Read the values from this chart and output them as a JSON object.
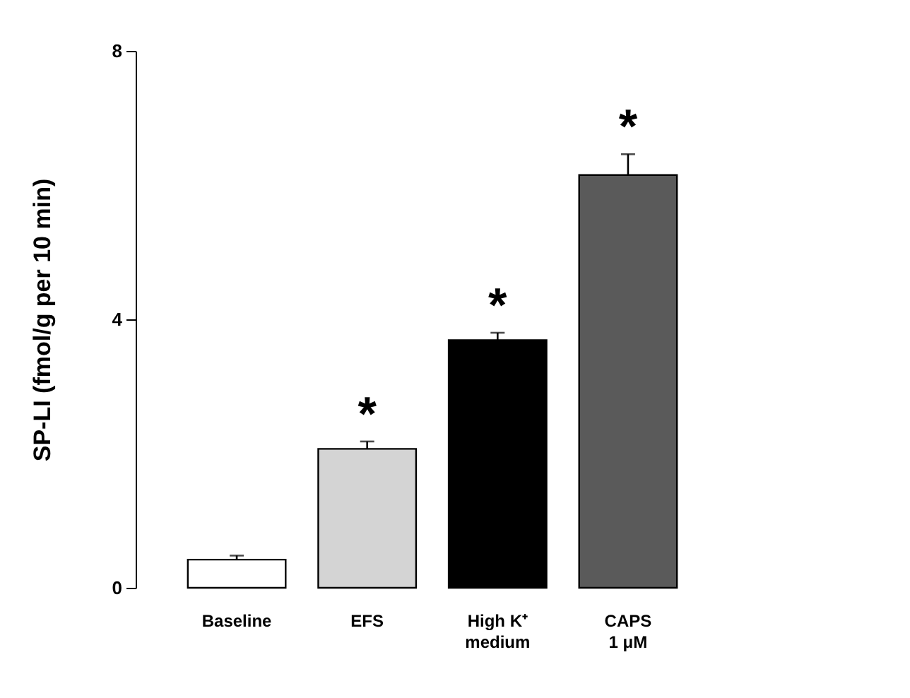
{
  "chart_data": {
    "type": "bar",
    "ylabel": "SP-LI (fmol/g per 10 min)",
    "categories": [
      "Baseline",
      "EFS",
      "High K⁺\nmedium",
      "CAPS\n1 μM"
    ],
    "values": [
      0.42,
      2.07,
      3.69,
      6.15
    ],
    "colors": [
      "#ffffff",
      "#d4d4d4",
      "#000000",
      "#5a5a5a"
    ],
    "errors": [
      [
        0.42,
        0.48
      ],
      [
        2.07,
        2.18
      ],
      [
        3.69,
        3.8
      ],
      [
        6.15,
        6.46
      ]
    ],
    "ylim": [
      0,
      8
    ],
    "yticks": [
      0,
      4,
      8
    ],
    "value_labels": [
      null,
      "*",
      "*",
      "*"
    ],
    "grid": false
  }
}
